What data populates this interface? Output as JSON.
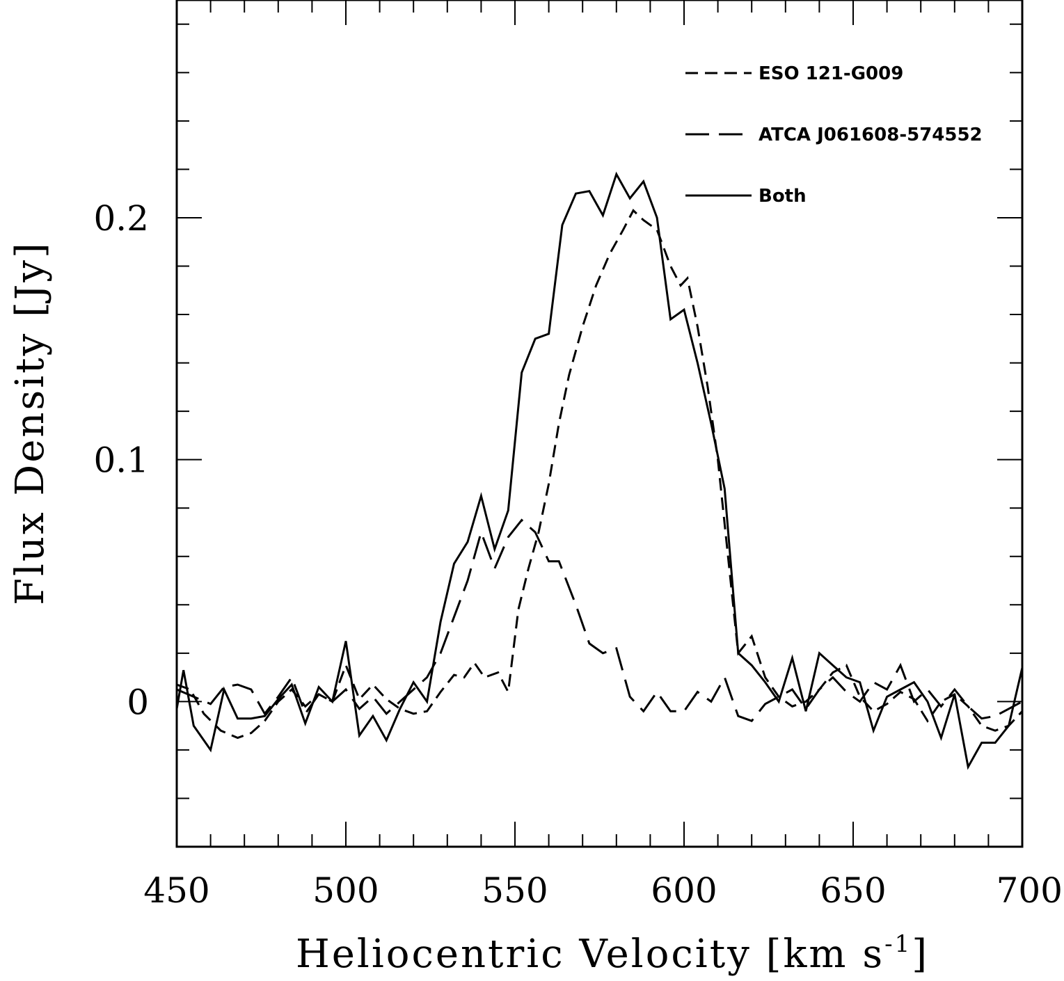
{
  "chart_data": {
    "type": "line",
    "xlabel": "Heliocentric Velocity [km s",
    "xlabel_superscript": "-1",
    "xlabel_suffix": "]",
    "ylabel": "Flux Density [Jy]",
    "xlim": [
      450,
      700
    ],
    "ylim": [
      -0.06,
      0.29
    ],
    "x_ticks": [
      450,
      500,
      550,
      600,
      650,
      700
    ],
    "x_tick_labels": [
      "450",
      "500",
      "550",
      "600",
      "650",
      "700"
    ],
    "y_ticks": [
      0,
      0.1,
      0.2
    ],
    "y_tick_labels": [
      "0",
      "0.1",
      "0.2"
    ],
    "legend_position": "top-right",
    "series": [
      {
        "name": "ESO 121-G009",
        "style": "short-dash",
        "points": [
          [
            450,
            0.007
          ],
          [
            454,
            0.005
          ],
          [
            458,
            -0.005
          ],
          [
            463,
            -0.012
          ],
          [
            468,
            -0.015
          ],
          [
            472,
            -0.013
          ],
          [
            476,
            -0.008
          ],
          [
            480,
            0.0
          ],
          [
            484,
            0.005
          ],
          [
            488,
            -0.002
          ],
          [
            492,
            0.003
          ],
          [
            496,
            0.0
          ],
          [
            500,
            0.015
          ],
          [
            504,
            0.001
          ],
          [
            508,
            0.007
          ],
          [
            512,
            0.001
          ],
          [
            516,
            -0.003
          ],
          [
            520,
            -0.005
          ],
          [
            524,
            -0.004
          ],
          [
            528,
            0.004
          ],
          [
            532,
            0.011
          ],
          [
            535,
            0.01
          ],
          [
            538,
            0.016
          ],
          [
            541,
            0.01
          ],
          [
            545,
            0.012
          ],
          [
            548,
            0.004
          ],
          [
            551,
            0.038
          ],
          [
            554,
            0.055
          ],
          [
            557,
            0.07
          ],
          [
            560,
            0.09
          ],
          [
            563,
            0.115
          ],
          [
            566,
            0.135
          ],
          [
            570,
            0.155
          ],
          [
            574,
            0.172
          ],
          [
            578,
            0.185
          ],
          [
            582,
            0.195
          ],
          [
            585,
            0.203
          ],
          [
            588,
            0.199
          ],
          [
            592,
            0.195
          ],
          [
            596,
            0.18
          ],
          [
            599,
            0.172
          ],
          [
            601,
            0.175
          ],
          [
            604,
            0.155
          ],
          [
            607,
            0.13
          ],
          [
            610,
            0.1
          ],
          [
            613,
            0.06
          ],
          [
            616,
            0.02
          ],
          [
            620,
            0.027
          ],
          [
            624,
            0.01
          ],
          [
            628,
            0.002
          ],
          [
            632,
            -0.002
          ],
          [
            636,
            0.0
          ],
          [
            640,
            0.005
          ],
          [
            644,
            0.012
          ],
          [
            648,
            0.015
          ],
          [
            652,
            0.002
          ],
          [
            656,
            -0.004
          ],
          [
            660,
            -0.001
          ],
          [
            664,
            0.004
          ],
          [
            668,
            0.001
          ],
          [
            672,
            -0.008
          ],
          [
            676,
            0.0
          ],
          [
            680,
            0.003
          ],
          [
            684,
            -0.002
          ],
          [
            688,
            -0.01
          ],
          [
            692,
            -0.012
          ],
          [
            696,
            -0.01
          ],
          [
            700,
            -0.004
          ]
        ]
      },
      {
        "name": "ATCA J061608-574552",
        "style": "long-dash",
        "points": [
          [
            450,
            0.005
          ],
          [
            455,
            0.002
          ],
          [
            460,
            -0.001
          ],
          [
            464,
            0.006
          ],
          [
            468,
            0.007
          ],
          [
            472,
            0.005
          ],
          [
            476,
            -0.005
          ],
          [
            480,
            0.002
          ],
          [
            484,
            0.01
          ],
          [
            488,
            -0.005
          ],
          [
            492,
            0.003
          ],
          [
            496,
            0.0
          ],
          [
            500,
            0.005
          ],
          [
            504,
            -0.003
          ],
          [
            508,
            0.002
          ],
          [
            512,
            -0.005
          ],
          [
            516,
            0.0
          ],
          [
            520,
            0.005
          ],
          [
            524,
            0.01
          ],
          [
            528,
            0.02
          ],
          [
            532,
            0.035
          ],
          [
            536,
            0.05
          ],
          [
            540,
            0.07
          ],
          [
            544,
            0.055
          ],
          [
            548,
            0.068
          ],
          [
            552,
            0.075
          ],
          [
            556,
            0.07
          ],
          [
            560,
            0.058
          ],
          [
            563,
            0.058
          ],
          [
            568,
            0.04
          ],
          [
            572,
            0.024
          ],
          [
            576,
            0.02
          ],
          [
            580,
            0.022
          ],
          [
            584,
            0.002
          ],
          [
            588,
            -0.004
          ],
          [
            592,
            0.004
          ],
          [
            596,
            -0.004
          ],
          [
            600,
            -0.004
          ],
          [
            604,
            0.004
          ],
          [
            608,
            0.0
          ],
          [
            612,
            0.01
          ],
          [
            616,
            -0.006
          ],
          [
            620,
            -0.008
          ],
          [
            624,
            -0.001
          ],
          [
            628,
            0.002
          ],
          [
            632,
            0.005
          ],
          [
            636,
            -0.003
          ],
          [
            640,
            0.005
          ],
          [
            644,
            0.01
          ],
          [
            648,
            0.004
          ],
          [
            652,
            0.0
          ],
          [
            656,
            0.008
          ],
          [
            660,
            0.005
          ],
          [
            664,
            0.015
          ],
          [
            668,
            0.0
          ],
          [
            672,
            0.005
          ],
          [
            676,
            -0.002
          ],
          [
            680,
            0.005
          ],
          [
            684,
            -0.002
          ],
          [
            688,
            -0.007
          ],
          [
            692,
            -0.006
          ],
          [
            696,
            -0.003
          ],
          [
            700,
            0.0
          ]
        ]
      },
      {
        "name": "Both",
        "style": "solid",
        "points": [
          [
            450,
            -0.003
          ],
          [
            452,
            0.013
          ],
          [
            455,
            -0.01
          ],
          [
            460,
            -0.02
          ],
          [
            464,
            0.005
          ],
          [
            468,
            -0.007
          ],
          [
            472,
            -0.007
          ],
          [
            476,
            -0.006
          ],
          [
            480,
            0.001
          ],
          [
            484,
            0.007
          ],
          [
            488,
            -0.009
          ],
          [
            492,
            0.006
          ],
          [
            496,
            0.0
          ],
          [
            500,
            0.025
          ],
          [
            504,
            -0.014
          ],
          [
            508,
            -0.006
          ],
          [
            512,
            -0.016
          ],
          [
            516,
            -0.003
          ],
          [
            520,
            0.008
          ],
          [
            524,
            0.0
          ],
          [
            528,
            0.033
          ],
          [
            532,
            0.057
          ],
          [
            536,
            0.066
          ],
          [
            540,
            0.085
          ],
          [
            544,
            0.063
          ],
          [
            548,
            0.079
          ],
          [
            552,
            0.136
          ],
          [
            556,
            0.15
          ],
          [
            560,
            0.152
          ],
          [
            564,
            0.197
          ],
          [
            568,
            0.21
          ],
          [
            572,
            0.211
          ],
          [
            576,
            0.201
          ],
          [
            580,
            0.218
          ],
          [
            584,
            0.208
          ],
          [
            588,
            0.215
          ],
          [
            592,
            0.2
          ],
          [
            596,
            0.158
          ],
          [
            600,
            0.162
          ],
          [
            604,
            0.14
          ],
          [
            608,
            0.115
          ],
          [
            612,
            0.088
          ],
          [
            616,
            0.02
          ],
          [
            620,
            0.015
          ],
          [
            624,
            0.008
          ],
          [
            628,
            0.0
          ],
          [
            632,
            0.018
          ],
          [
            636,
            -0.004
          ],
          [
            640,
            0.02
          ],
          [
            644,
            0.015
          ],
          [
            648,
            0.01
          ],
          [
            652,
            0.008
          ],
          [
            656,
            -0.012
          ],
          [
            660,
            0.002
          ],
          [
            664,
            0.005
          ],
          [
            668,
            0.008
          ],
          [
            672,
            0.0
          ],
          [
            676,
            -0.015
          ],
          [
            680,
            0.003
          ],
          [
            684,
            -0.027
          ],
          [
            688,
            -0.017
          ],
          [
            692,
            -0.017
          ],
          [
            696,
            -0.01
          ],
          [
            700,
            0.014
          ]
        ]
      }
    ]
  }
}
